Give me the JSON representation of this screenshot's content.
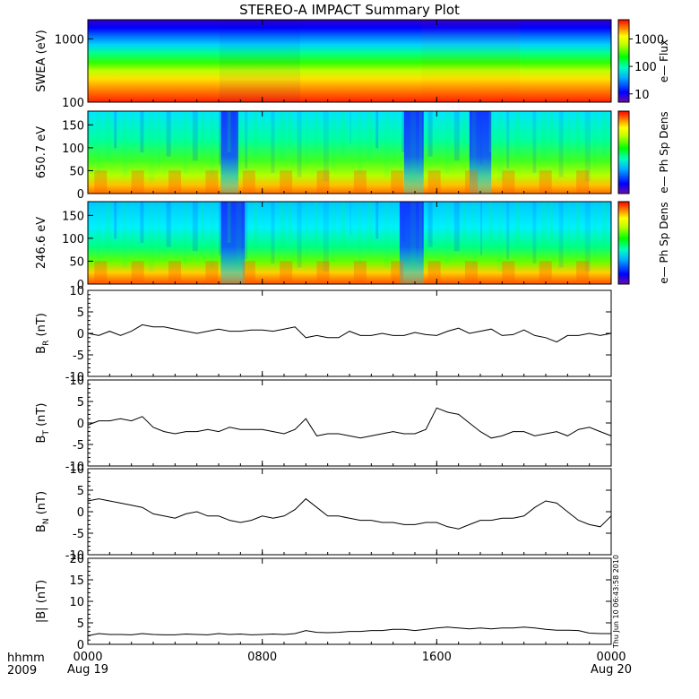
{
  "chart_data": {
    "title": "STEREO-A IMPACT Summary Plot",
    "x_axis": {
      "corner_label": "hhmm",
      "corner_year": "2009",
      "ticks": [
        {
          "hours": 0,
          "label": "0000",
          "sublabel": "Aug 19"
        },
        {
          "hours": 8,
          "label": "0800",
          "sublabel": ""
        },
        {
          "hours": 16,
          "label": "1600",
          "sublabel": ""
        },
        {
          "hours": 24,
          "label": "0000",
          "sublabel": "Aug 20"
        }
      ],
      "xlim_hours": [
        0,
        24
      ]
    },
    "timestamp": "Thu Jun 10 06:43:58 2010",
    "panels": [
      {
        "type": "heatmap",
        "ylabel": "SWEA (eV)",
        "scale": "log",
        "ylim": [
          100,
          2000
        ],
        "yticks": [
          "100",
          "1000"
        ],
        "colorbar": {
          "label": "e— Flux",
          "ticks": [
            "10",
            "100",
            "1000"
          ],
          "range": [
            5,
            5000
          ]
        },
        "description_values": "energy-dependent flux, high at low energy, decreasing with energy"
      },
      {
        "type": "heatmap",
        "ylabel": "650.7 eV",
        "ylim": [
          0,
          180
        ],
        "yticks": [
          "0",
          "50",
          "100",
          "150"
        ],
        "colorbar": {
          "label": "e— Ph Sp Dens"
        },
        "low_intervals_hours": [
          [
            6.1,
            6.9
          ],
          [
            14.5,
            15.4
          ],
          [
            17.5,
            18.5
          ]
        ]
      },
      {
        "type": "heatmap",
        "ylabel": "246.6 eV",
        "ylim": [
          0,
          180
        ],
        "yticks": [
          "0",
          "50",
          "100",
          "150"
        ],
        "colorbar": {
          "label": "e— Ph Sp Dens"
        },
        "low_intervals_hours": [
          [
            6.1,
            7.2
          ],
          [
            14.3,
            15.4
          ]
        ]
      },
      {
        "type": "line",
        "ylabel": "B",
        "ylabel_sub": "R",
        "ylabel_unit": "(nT)",
        "ylim": [
          -10,
          10
        ],
        "yticks": [
          "-10",
          "-5",
          "0",
          "5",
          "10"
        ],
        "x_hours": [
          0,
          0.5,
          1,
          1.5,
          2,
          2.5,
          3,
          3.5,
          4,
          4.5,
          5,
          5.5,
          6,
          6.5,
          7,
          7.5,
          8,
          8.5,
          9,
          9.5,
          10,
          10.5,
          11,
          11.5,
          12,
          12.5,
          13,
          13.5,
          14,
          14.5,
          15,
          15.5,
          16,
          16.5,
          17,
          17.5,
          18,
          18.5,
          19,
          19.5,
          20,
          20.5,
          21,
          21.5,
          22,
          22.5,
          23,
          23.5,
          24
        ],
        "values": [
          0,
          -0.5,
          0.5,
          -0.5,
          0.5,
          2,
          1.5,
          1.5,
          1,
          0.5,
          0,
          0.5,
          1,
          0.5,
          0.5,
          0.8,
          0.8,
          0.5,
          1,
          1.5,
          -1,
          -0.5,
          -1,
          -1,
          0.5,
          -0.5,
          -0.5,
          0,
          -0.5,
          -0.5,
          0.2,
          -0.3,
          -0.5,
          0.5,
          1.2,
          0,
          0.5,
          1,
          -0.5,
          -0.3,
          0.8,
          -0.5,
          -1,
          -2,
          -0.5,
          -0.5,
          0,
          -0.5,
          0
        ]
      },
      {
        "type": "line",
        "ylabel": "B",
        "ylabel_sub": "T",
        "ylabel_unit": "(nT)",
        "ylim": [
          -10,
          10
        ],
        "yticks": [
          "-10",
          "-5",
          "0",
          "5",
          "10"
        ],
        "x_hours": [
          0,
          0.5,
          1,
          1.5,
          2,
          2.5,
          3,
          3.5,
          4,
          4.5,
          5,
          5.5,
          6,
          6.5,
          7,
          7.5,
          8,
          8.5,
          9,
          9.5,
          10,
          10.5,
          11,
          11.5,
          12,
          12.5,
          13,
          13.5,
          14,
          14.5,
          15,
          15.5,
          16,
          16.5,
          17,
          17.5,
          18,
          18.5,
          19,
          19.5,
          20,
          20.5,
          21,
          21.5,
          22,
          22.5,
          23,
          23.5,
          24
        ],
        "values": [
          -0.5,
          0.5,
          0.5,
          1,
          0.5,
          1.5,
          -1,
          -2,
          -2.5,
          -2,
          -2,
          -1.5,
          -2,
          -1,
          -1.5,
          -1.5,
          -1.5,
          -2,
          -2.5,
          -1.5,
          1,
          -3,
          -2.5,
          -2.5,
          -3,
          -3.5,
          -3,
          -2.5,
          -2,
          -2.5,
          -2.5,
          -1.5,
          3.5,
          2.5,
          2,
          0,
          -2,
          -3.5,
          -3,
          -2,
          -2,
          -3,
          -2.5,
          -2,
          -3,
          -1.5,
          -1,
          -2,
          -3
        ]
      },
      {
        "type": "line",
        "ylabel": "B",
        "ylabel_sub": "N",
        "ylabel_unit": "(nT)",
        "ylim": [
          -10,
          10
        ],
        "yticks": [
          "-10",
          "-5",
          "0",
          "5",
          "10"
        ],
        "x_hours": [
          0,
          0.5,
          1,
          1.5,
          2,
          2.5,
          3,
          3.5,
          4,
          4.5,
          5,
          5.5,
          6,
          6.5,
          7,
          7.5,
          8,
          8.5,
          9,
          9.5,
          10,
          10.5,
          11,
          11.5,
          12,
          12.5,
          13,
          13.5,
          14,
          14.5,
          15,
          15.5,
          16,
          16.5,
          17,
          17.5,
          18,
          18.5,
          19,
          19.5,
          20,
          20.5,
          21,
          21.5,
          22,
          22.5,
          23,
          23.5,
          24
        ],
        "values": [
          2.5,
          3,
          2.5,
          2,
          1.5,
          1,
          -0.5,
          -1,
          -1.5,
          -0.5,
          0,
          -1,
          -1,
          -2,
          -2.5,
          -2,
          -1,
          -1.5,
          -1,
          0.5,
          3,
          1,
          -1,
          -1,
          -1.5,
          -2,
          -2,
          -2.5,
          -2.5,
          -3,
          -3,
          -2.5,
          -2.5,
          -3.5,
          -4,
          -3,
          -2,
          -2,
          -1.5,
          -1.5,
          -1,
          1,
          2.5,
          2,
          0,
          -2,
          -3,
          -3.5,
          -1
        ]
      },
      {
        "type": "line",
        "ylabel": "|B|",
        "ylabel_unit": "(nT)",
        "ylim": [
          0,
          20
        ],
        "yticks": [
          "0",
          "5",
          "10",
          "15",
          "20"
        ],
        "x_hours": [
          0,
          0.5,
          1,
          1.5,
          2,
          2.5,
          3,
          3.5,
          4,
          4.5,
          5,
          5.5,
          6,
          6.5,
          7,
          7.5,
          8,
          8.5,
          9,
          9.5,
          10,
          10.5,
          11,
          11.5,
          12,
          12.5,
          13,
          13.5,
          14,
          14.5,
          15,
          15.5,
          16,
          16.5,
          17,
          17.5,
          18,
          18.5,
          19,
          19.5,
          20,
          20.5,
          21,
          21.5,
          22,
          22.5,
          23,
          23.5,
          24
        ],
        "values": [
          2,
          2.5,
          2.3,
          2.3,
          2.2,
          2.5,
          2.3,
          2.2,
          2.2,
          2.4,
          2.3,
          2.2,
          2.5,
          2.3,
          2.4,
          2.2,
          2.3,
          2.4,
          2.3,
          2.5,
          3.2,
          2.8,
          2.7,
          2.8,
          3,
          3,
          3.2,
          3.2,
          3.5,
          3.5,
          3.2,
          3.5,
          3.8,
          4,
          3.8,
          3.6,
          3.8,
          3.6,
          3.8,
          3.8,
          4,
          3.8,
          3.5,
          3.3,
          3.3,
          3.2,
          2.6,
          2.5,
          2.5
        ]
      }
    ]
  }
}
